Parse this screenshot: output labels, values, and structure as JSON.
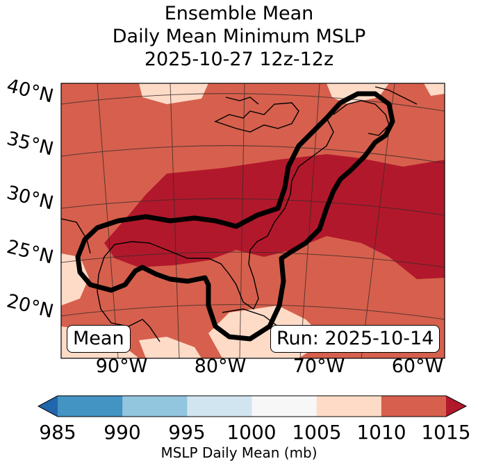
{
  "title": {
    "line1": "Ensemble Mean",
    "line2": "Daily Mean Minimum MSLP",
    "line3": "2025-10-27 12z-12z"
  },
  "map": {
    "lat_labels": [
      "40°N",
      "35°N",
      "30°N",
      "25°N",
      "20°N"
    ],
    "lon_labels": [
      "90°W",
      "80°W",
      "70°W",
      "60°W"
    ],
    "annotations": {
      "mean_label": "Mean",
      "run_label": "Run: 2025-10-14"
    },
    "colors": {
      "band_1005_1010": "#fddbc7",
      "band_1010_1015": "#d6604d",
      "band_above_1015": "#b2182b",
      "contour": "#000000"
    }
  },
  "colorbar": {
    "label": "MSLP Daily Mean (mb)",
    "ticks": [
      "985",
      "990",
      "995",
      "1000",
      "1005",
      "1010",
      "1015"
    ],
    "colors": [
      "#2166ac",
      "#4393c3",
      "#92c5de",
      "#d1e5f0",
      "#f7f7f7",
      "#fddbc7",
      "#d6604d",
      "#b2182b"
    ]
  }
}
